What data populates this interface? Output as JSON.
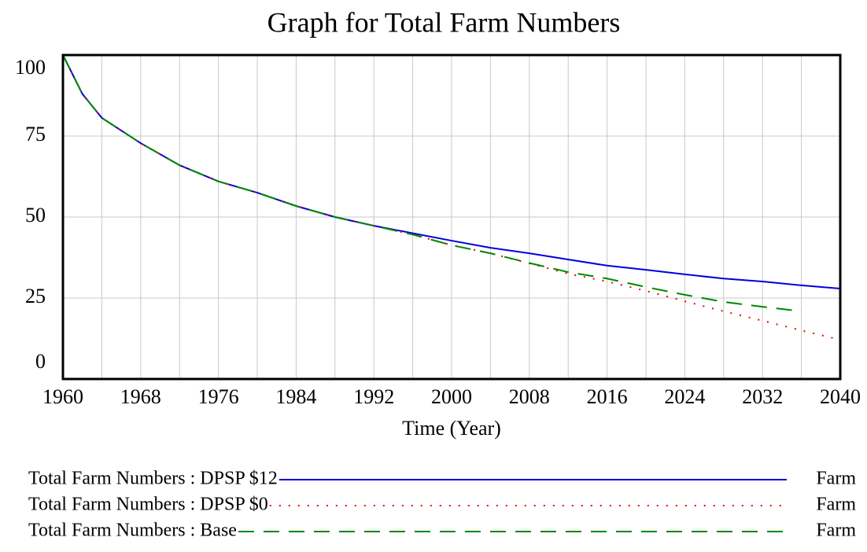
{
  "chart_data": {
    "type": "line",
    "title": "Graph for Total Farm Numbers",
    "xlabel": "Time (Year)",
    "x": [
      1960,
      1962,
      1964,
      1968,
      1972,
      1976,
      1980,
      1984,
      1988,
      1992,
      1996,
      2000,
      2004,
      2008,
      2012,
      2016,
      2020,
      2024,
      2028,
      2032,
      2036,
      2040
    ],
    "series": [
      {
        "name": "Total Farm Numbers : DPSP $12",
        "unit": "Farm",
        "color": "#0000dd",
        "dash": "solid",
        "values": [
          100,
          88,
          80.6,
          72.8,
          66,
          61,
          57.5,
          53.4,
          50,
          47.3,
          45,
          42.7,
          40.5,
          38.8,
          36.9,
          35,
          33.7,
          32.3,
          31,
          30.1,
          28.9,
          27.9
        ]
      },
      {
        "name": "Total Farm Numbers : DPSP $0",
        "unit": "Farm",
        "color": "#ee0000",
        "dash": "dotted",
        "values": [
          100,
          88,
          80.6,
          72.8,
          66,
          61,
          57.5,
          53.4,
          50,
          47.3,
          44.6,
          41.3,
          38.8,
          35.7,
          32.5,
          30.1,
          27.2,
          24,
          20.9,
          18,
          15,
          12.1
        ]
      },
      {
        "name": "Total Farm Numbers : Base",
        "unit": "Farm",
        "color": "#008800",
        "dash": "dashed",
        "values": [
          100,
          88,
          80.6,
          72.8,
          66,
          61,
          57.5,
          53.4,
          50,
          47.3,
          44.6,
          41.3,
          38.8,
          35.8,
          33,
          31,
          28.4,
          26,
          23.8,
          22.3,
          20.9,
          null
        ]
      }
    ],
    "xlim": [
      1960,
      2040
    ],
    "xticks": [
      1960,
      1968,
      1976,
      1984,
      1992,
      2000,
      2008,
      2016,
      2024,
      2032,
      2040
    ],
    "xminorticks": [
      1964,
      1972,
      1980,
      1988,
      1996,
      2004,
      2012,
      2020,
      2028,
      2036
    ],
    "ylim": [
      0,
      100
    ],
    "yticks": [
      0,
      25,
      50,
      75,
      100
    ],
    "grid": true
  }
}
